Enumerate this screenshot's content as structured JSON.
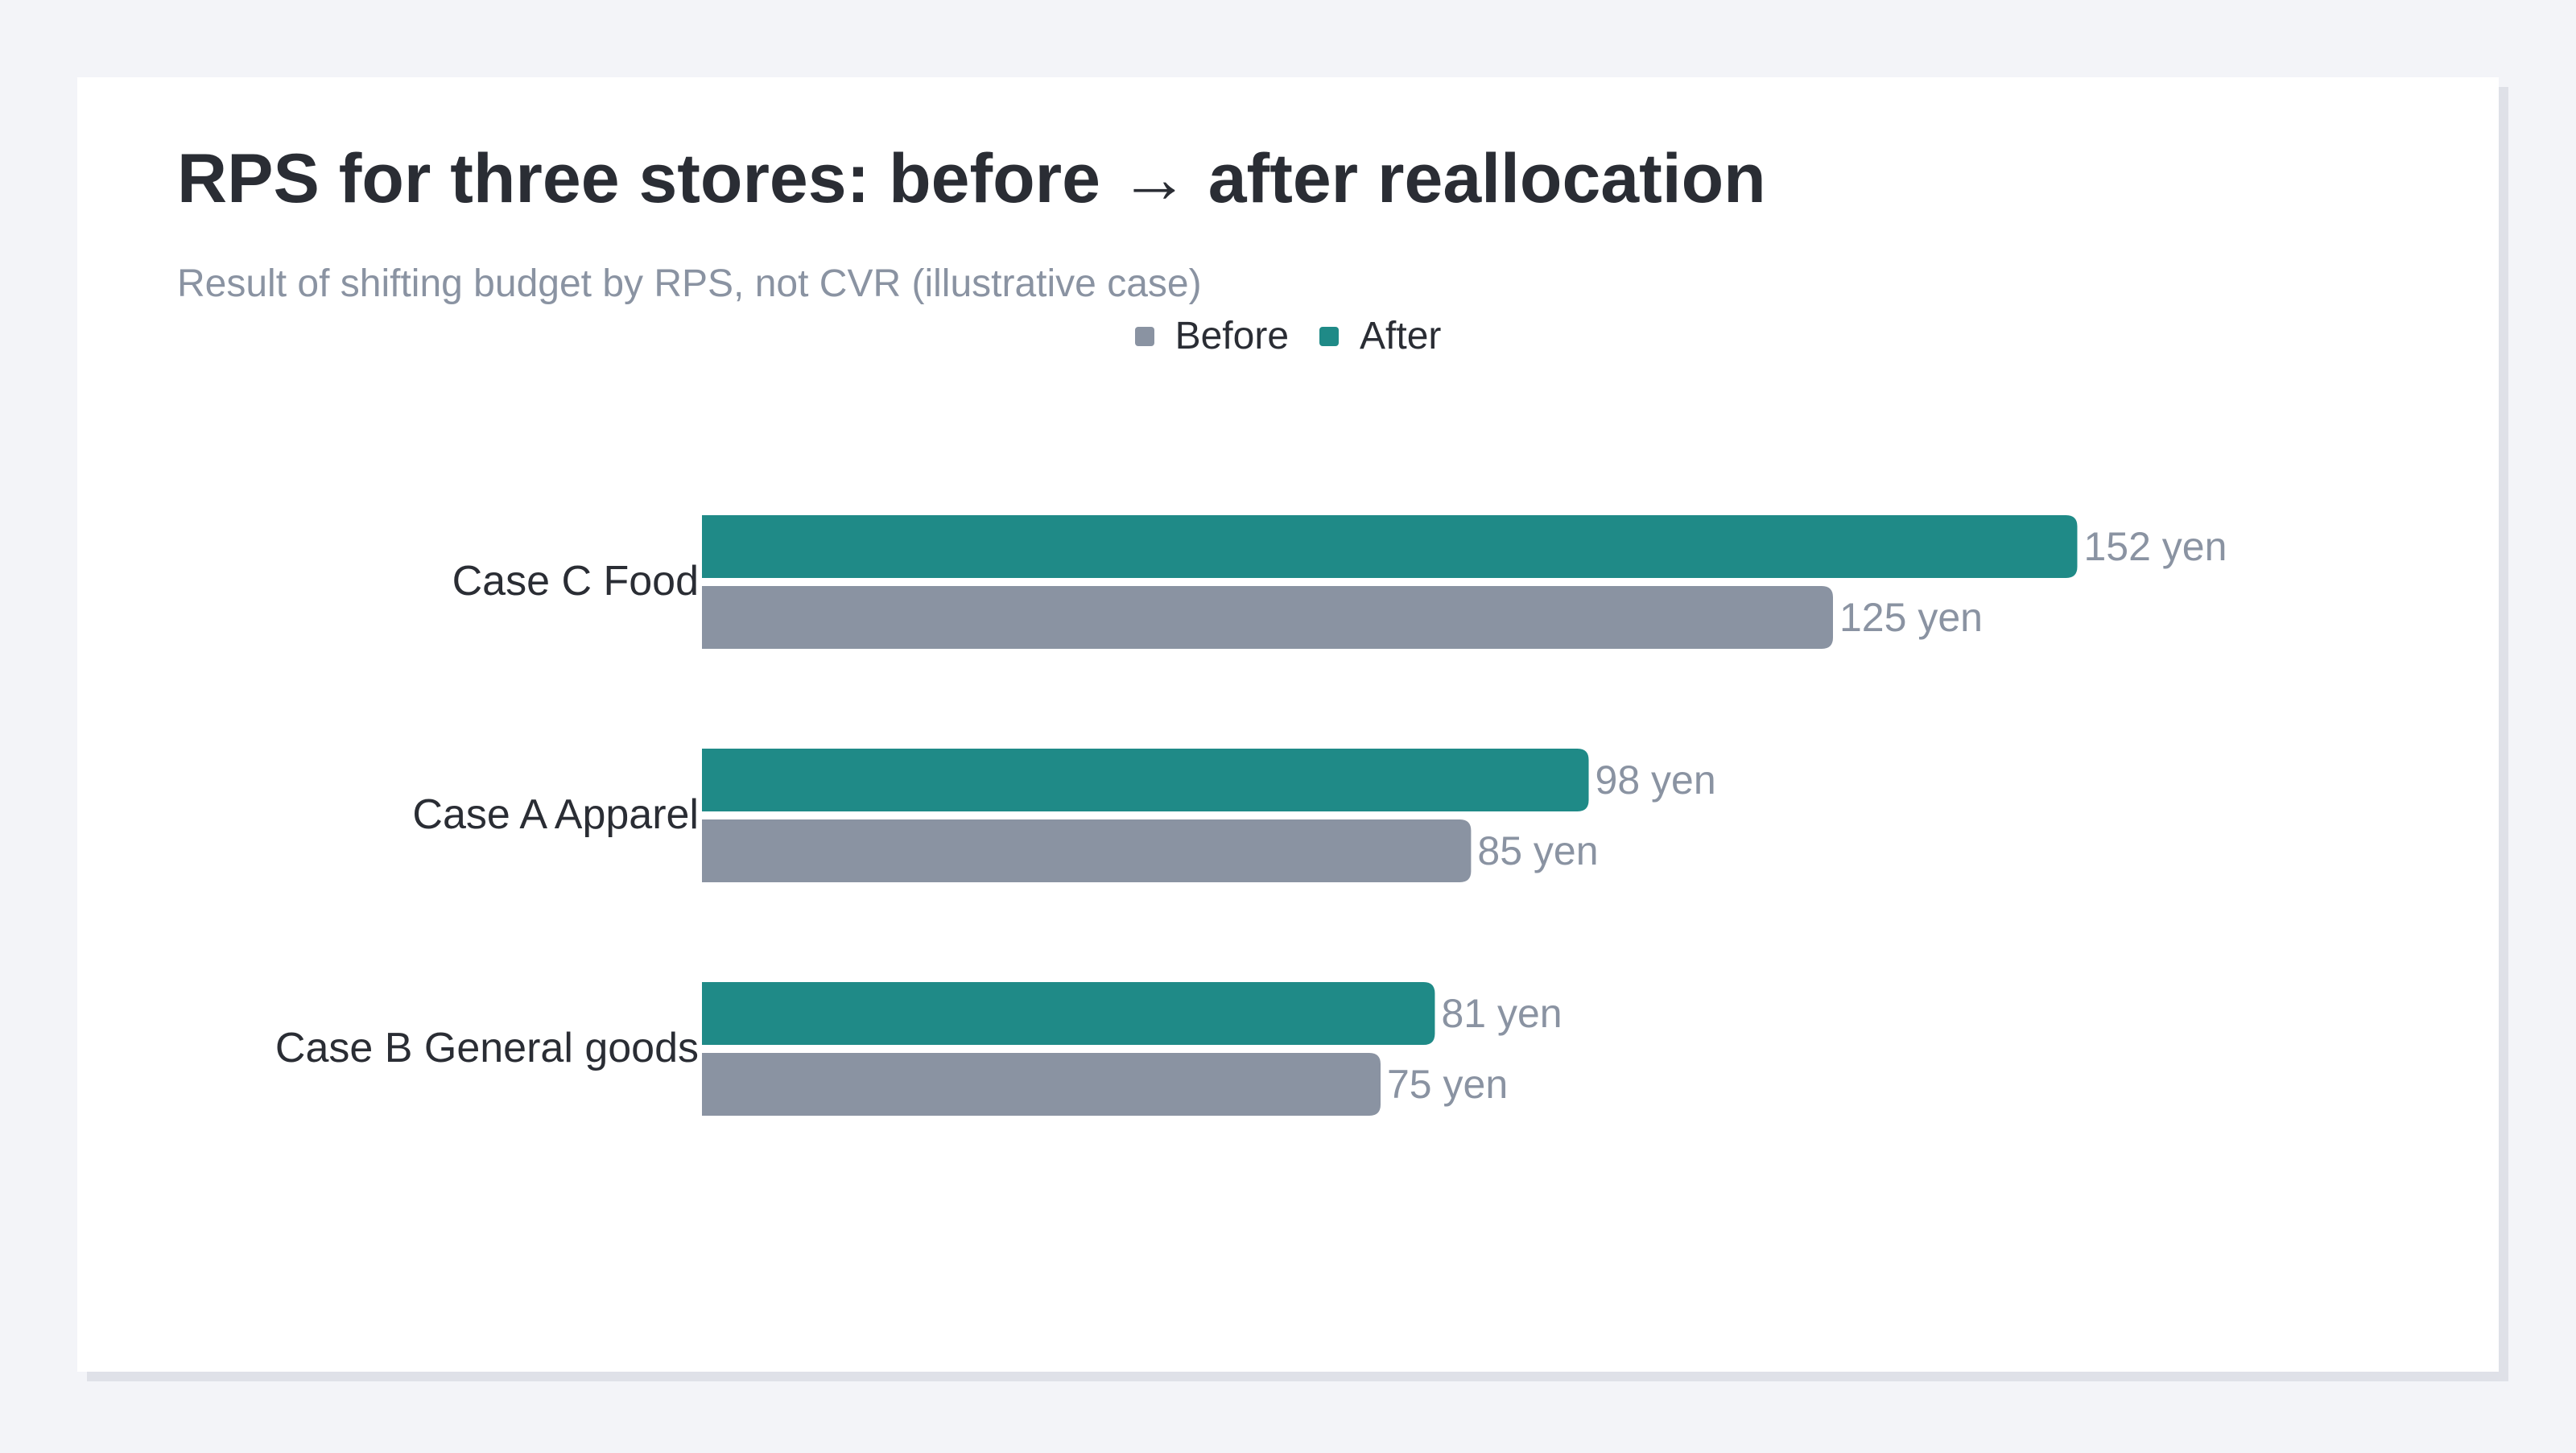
{
  "chart_data": {
    "type": "bar",
    "orientation": "horizontal",
    "title": "RPS for three stores: before → after reallocation",
    "subtitle": "Result of shifting budget by RPS, not CVR (illustrative case)",
    "categories": [
      "Case C Food",
      "Case A Apparel",
      "Case B General goods"
    ],
    "series": [
      {
        "name": "After",
        "values": [
          152,
          98,
          81
        ],
        "color": "#1f8a87"
      },
      {
        "name": "Before",
        "values": [
          125,
          85,
          75
        ],
        "color": "#8a93a2"
      }
    ],
    "value_suffix": " yen",
    "xlim": [
      0,
      180
    ],
    "grid": false,
    "legend_position": "top-center",
    "legend": [
      "Before",
      "After"
    ]
  },
  "colors": {
    "after": "#1f8a87",
    "before": "#8a93a2",
    "label_text": "#8a93a2",
    "category_text": "#2a2d34"
  }
}
